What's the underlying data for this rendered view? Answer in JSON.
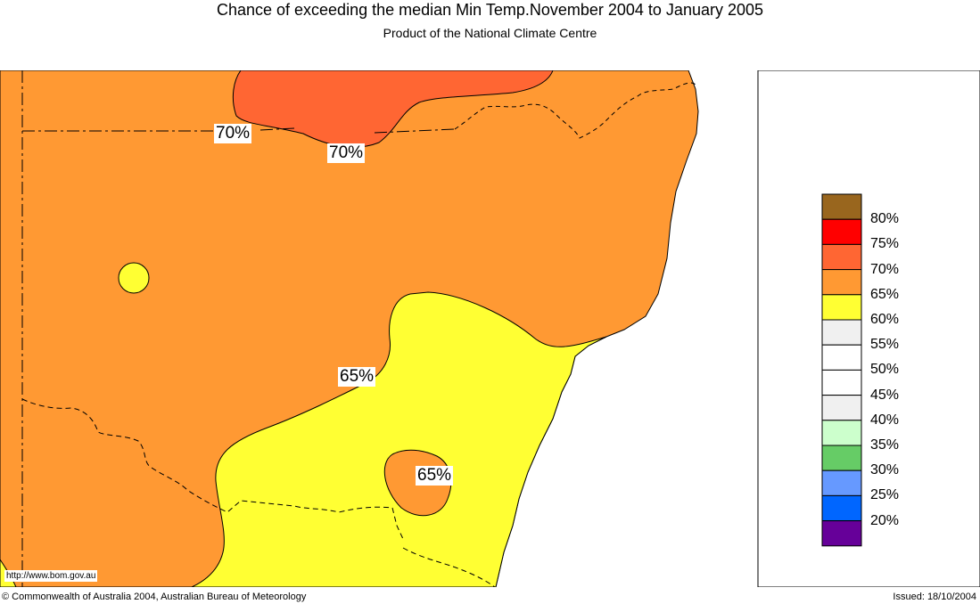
{
  "header": {
    "title": "Chance of exceeding the median Min Temp.November 2004 to January 2005",
    "subtitle": "Product of the National Climate Centre"
  },
  "map": {
    "contour_labels": [
      "70%",
      "70%",
      "65%",
      "65%"
    ],
    "url": "http://www.bom.gov.au"
  },
  "legend": {
    "colors": [
      "#99661e",
      "#ff0000",
      "#ff6633",
      "#ff9933",
      "#ffff33",
      "#f0f0f0",
      "#ffffff",
      "#ffffff",
      "#f0f0f0",
      "#ccffcc",
      "#66cc66",
      "#6699ff",
      "#0066ff",
      "#660099"
    ],
    "labels": [
      "80%",
      "75%",
      "70%",
      "65%",
      "60%",
      "55%",
      "50%",
      "45%",
      "40%",
      "35%",
      "30%",
      "25%",
      "20%"
    ]
  },
  "footer": {
    "copyright": "© Commonwealth of Australia 2004, Australian Bureau of Meteorology",
    "issued": "Issued: 18/10/2004"
  }
}
